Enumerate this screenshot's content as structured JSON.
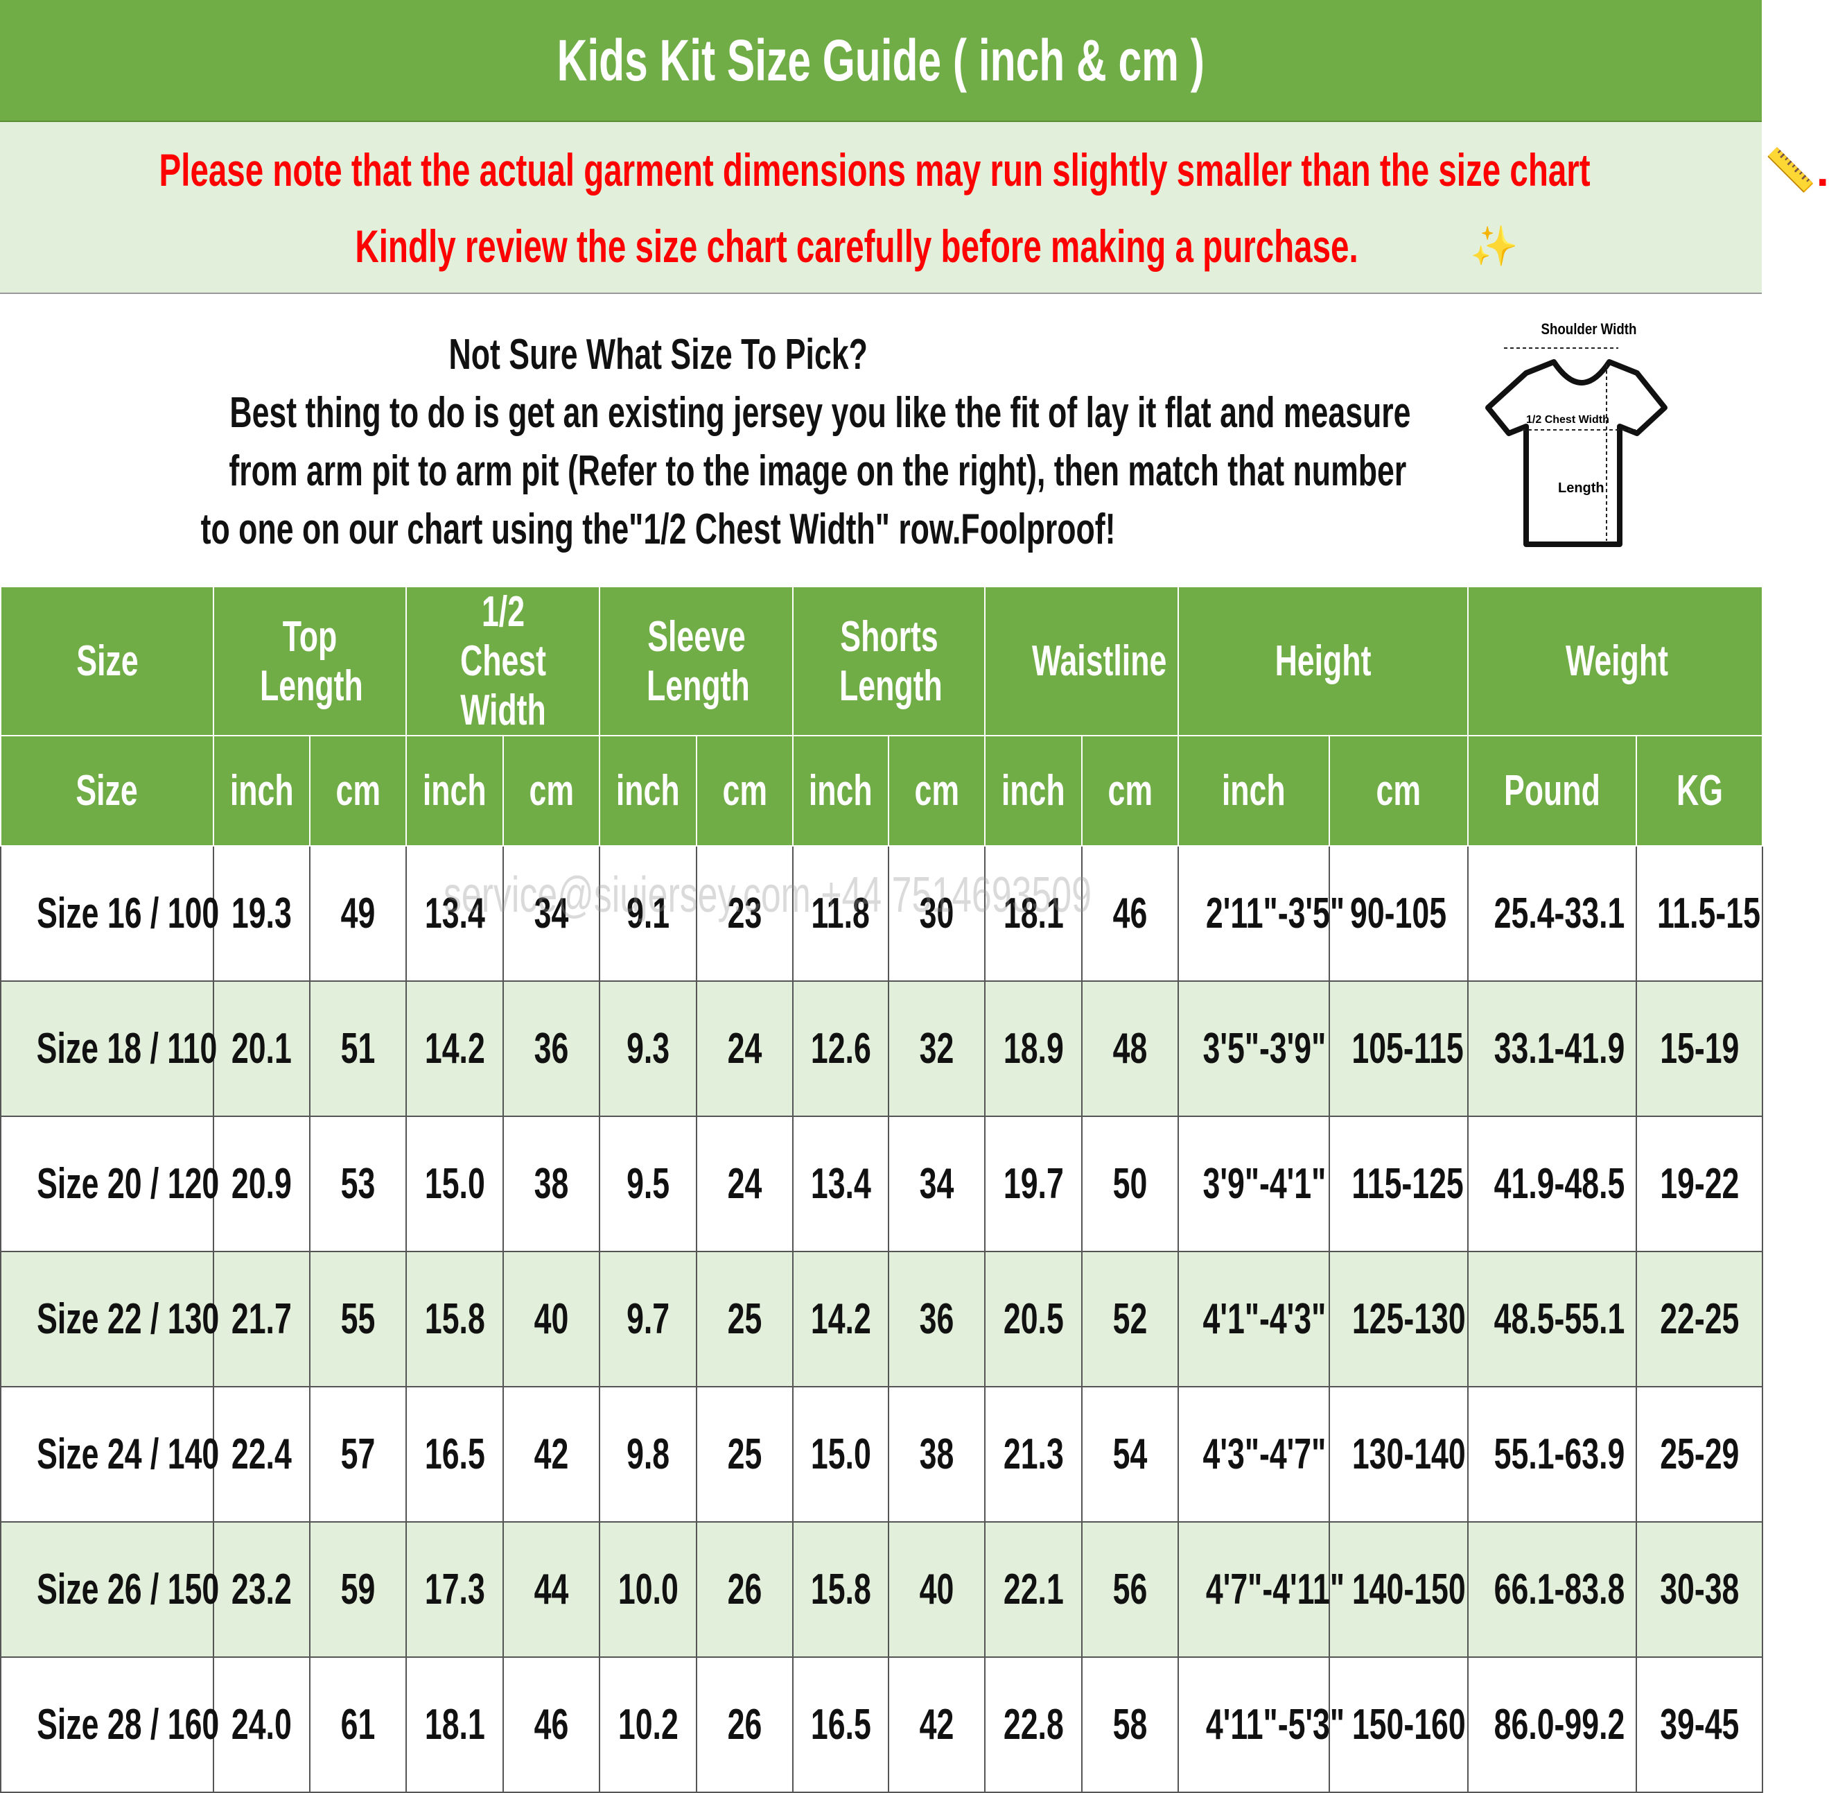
{
  "title": "Kids Kit Size Guide ( inch & cm )",
  "colors": {
    "green": "#70AD47",
    "light_green": "#E2EFDA",
    "notice_red": "#FF0000"
  },
  "notice": {
    "line1": "Please note that the actual garment dimensions may run slightly smaller than the size chart",
    "line1_end": ".",
    "line2": "Kindly review the size chart carefully before making a purchase.",
    "icons": [
      "pushpin-icon",
      "ruler-icon",
      "sparkles-icon"
    ]
  },
  "intro": {
    "heading": "Not Sure What Size To Pick?",
    "line1": "Best thing to do is get an existing jersey you like the fit of lay it flat and measure",
    "line2": "from arm pit to arm pit (Refer to the image on the right), then match that number",
    "line3": "to one on our chart using the\"1/2 Chest Width\" row.Foolproof!"
  },
  "diagram": {
    "shoulder": "Shoulder Width",
    "chest": "1/2 Chest Width",
    "length": "Length"
  },
  "watermark": "service@siujersey.com   +44 7514693509",
  "table": {
    "groups": [
      {
        "label": "Size",
        "span": 1
      },
      {
        "label": "Top Length",
        "span": 2
      },
      {
        "label": "1/2 Chest Width",
        "span": 2
      },
      {
        "label": "Sleeve Length",
        "span": 2
      },
      {
        "label": "Shorts Length",
        "span": 2
      },
      {
        "label": "Waistline",
        "span": 2
      },
      {
        "label": "Height",
        "span": 2
      },
      {
        "label": "Weight",
        "span": 2
      }
    ],
    "units": [
      "Size",
      "inch",
      "cm",
      "inch",
      "cm",
      "inch",
      "cm",
      "inch",
      "cm",
      "inch",
      "cm",
      "inch",
      "cm",
      "Pound",
      "KG"
    ],
    "rows": [
      [
        "Size 16 / 100",
        "19.3",
        "49",
        "13.4",
        "34",
        "9.1",
        "23",
        "11.8",
        "30",
        "18.1",
        "46",
        "2'11\"-3'5\"",
        "90-105",
        "25.4-33.1",
        "11.5-15"
      ],
      [
        "Size 18 / 110",
        "20.1",
        "51",
        "14.2",
        "36",
        "9.3",
        "24",
        "12.6",
        "32",
        "18.9",
        "48",
        "3'5\"-3'9\"",
        "105-115",
        "33.1-41.9",
        "15-19"
      ],
      [
        "Size 20 / 120",
        "20.9",
        "53",
        "15.0",
        "38",
        "9.5",
        "24",
        "13.4",
        "34",
        "19.7",
        "50",
        "3'9\"-4'1\"",
        "115-125",
        "41.9-48.5",
        "19-22"
      ],
      [
        "Size 22 / 130",
        "21.7",
        "55",
        "15.8",
        "40",
        "9.7",
        "25",
        "14.2",
        "36",
        "20.5",
        "52",
        "4'1\"-4'3\"",
        "125-130",
        "48.5-55.1",
        "22-25"
      ],
      [
        "Size 24 / 140",
        "22.4",
        "57",
        "16.5",
        "42",
        "9.8",
        "25",
        "15.0",
        "38",
        "21.3",
        "54",
        "4'3\"-4'7\"",
        "130-140",
        "55.1-63.9",
        "25-29"
      ],
      [
        "Size 26 / 150",
        "23.2",
        "59",
        "17.3",
        "44",
        "10.0",
        "26",
        "15.8",
        "40",
        "22.1",
        "56",
        "4'7\"-4'11\"",
        "140-150",
        "66.1-83.8",
        "30-38"
      ],
      [
        "Size 28 / 160",
        "24.0",
        "61",
        "18.1",
        "46",
        "10.2",
        "26",
        "16.5",
        "42",
        "22.8",
        "58",
        "4'11\"-5'3\"",
        "150-160",
        "86.0-99.2",
        "39-45"
      ]
    ]
  }
}
